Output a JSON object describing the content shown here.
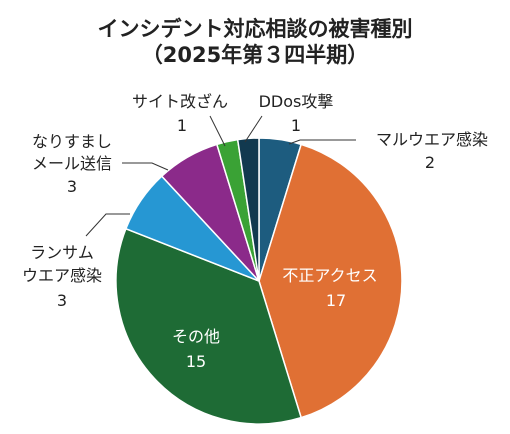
{
  "chart_data": {
    "type": "pie",
    "title": "インシデント対応相談の被害種別",
    "subtitle": "（2025年第３四半期）",
    "slices": [
      {
        "name": "マルウエア感染",
        "value": 2,
        "color": "#1d5c7f"
      },
      {
        "name": "不正アクセス",
        "value": 17,
        "color": "#e07034"
      },
      {
        "name": "その他",
        "value": 15,
        "color": "#1e6b35"
      },
      {
        "name": "ランサムウエア感染",
        "value": 3,
        "color": "#2697d3"
      },
      {
        "name": "なりすましメール送信",
        "value": 3,
        "color": "#8b2a8a"
      },
      {
        "name": "サイト改ざん",
        "value": 1,
        "color": "#3aa235"
      },
      {
        "name": "DDos攻撃",
        "value": 1,
        "color": "#12394f"
      }
    ],
    "labels": {
      "malware": {
        "line1": "マルウエア感染",
        "value": "2"
      },
      "unauth": {
        "line1": "不正アクセス",
        "value": "17"
      },
      "other": {
        "line1": "その他",
        "value": "15"
      },
      "ransom": {
        "line1": "ランサム",
        "line2": "ウエア感染",
        "value": "3"
      },
      "spoof": {
        "line1": "なりすまし",
        "line2": "メール送信",
        "value": "3"
      },
      "site": {
        "line1": "サイト改ざん",
        "value": "1"
      },
      "ddos": {
        "line1": "DDos攻撃",
        "value": "1"
      }
    }
  }
}
